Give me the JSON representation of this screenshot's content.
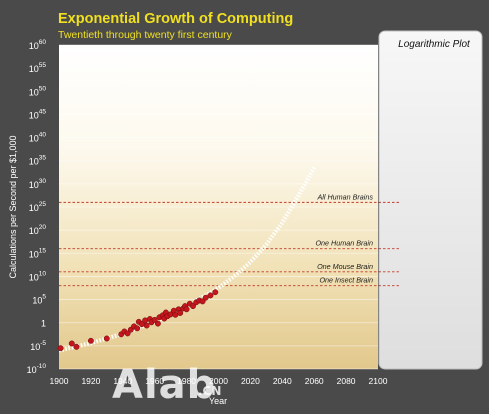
{
  "chart_data": {
    "type": "scatter",
    "title": "Exponential Growth of Computing",
    "subtitle": "Twentieth through twenty first century",
    "xlabel": "Year",
    "ylabel": "Calculations per Second per $1,000",
    "side_panel_title": "Logarithmic Plot",
    "y_scale": "log",
    "xlim": [
      1900,
      2100
    ],
    "ylim_exponent": [
      -10,
      60
    ],
    "x_ticks": [
      "1900",
      "1920",
      "1940",
      "1960",
      "1980",
      "2000",
      "2020",
      "2040",
      "2060",
      "2080",
      "2100"
    ],
    "y_ticks": [
      {
        "base": "10",
        "exp": "-10"
      },
      {
        "base": "10",
        "exp": "-5"
      },
      {
        "base": "1",
        "exp": ""
      },
      {
        "base": "10",
        "exp": "5"
      },
      {
        "base": "10",
        "exp": "10"
      },
      {
        "base": "10",
        "exp": "15"
      },
      {
        "base": "10",
        "exp": "20"
      },
      {
        "base": "10",
        "exp": "25"
      },
      {
        "base": "10",
        "exp": "30"
      },
      {
        "base": "10",
        "exp": "35"
      },
      {
        "base": "10",
        "exp": "40"
      },
      {
        "base": "10",
        "exp": "45"
      },
      {
        "base": "10",
        "exp": "50"
      },
      {
        "base": "10",
        "exp": "55"
      },
      {
        "base": "10",
        "exp": "60"
      }
    ],
    "y_tick_exponents": [
      -10,
      -5,
      0,
      5,
      10,
      15,
      20,
      25,
      30,
      35,
      40,
      45,
      50,
      55,
      60
    ],
    "x_tick_values": [
      1900,
      1920,
      1940,
      1960,
      1980,
      2000,
      2020,
      2040,
      2060,
      2080,
      2100
    ],
    "grid": true,
    "reference_lines": [
      {
        "label": "All Human Brains",
        "log10_value": 26
      },
      {
        "label": "One Human Brain",
        "log10_value": 16
      },
      {
        "label": "One Mouse Brain",
        "log10_value": 11
      },
      {
        "label": "One Insect Brain",
        "log10_value": 8
      }
    ],
    "historical_points": [
      {
        "year": 1901,
        "log10": -5.5
      },
      {
        "year": 1908,
        "log10": -4.5
      },
      {
        "year": 1911,
        "log10": -5.2
      },
      {
        "year": 1920,
        "log10": -3.9
      },
      {
        "year": 1930,
        "log10": -3.4
      },
      {
        "year": 1939,
        "log10": -2.5
      },
      {
        "year": 1941,
        "log10": -1.9
      },
      {
        "year": 1943,
        "log10": -2.3
      },
      {
        "year": 1945,
        "log10": -1.5
      },
      {
        "year": 1947,
        "log10": -0.8
      },
      {
        "year": 1949,
        "log10": -1.2
      },
      {
        "year": 1950,
        "log10": 0.2
      },
      {
        "year": 1952,
        "log10": -0.3
      },
      {
        "year": 1954,
        "log10": 0.5
      },
      {
        "year": 1955,
        "log10": -0.6
      },
      {
        "year": 1957,
        "log10": 0.8
      },
      {
        "year": 1958,
        "log10": 0.1
      },
      {
        "year": 1960,
        "log10": 0.6
      },
      {
        "year": 1962,
        "log10": -0.2
      },
      {
        "year": 1963,
        "log10": 1.2
      },
      {
        "year": 1965,
        "log10": 1.6
      },
      {
        "year": 1966,
        "log10": 0.9
      },
      {
        "year": 1967,
        "log10": 2.2
      },
      {
        "year": 1968,
        "log10": 1.4
      },
      {
        "year": 1970,
        "log10": 1.8
      },
      {
        "year": 1972,
        "log10": 2.6
      },
      {
        "year": 1973,
        "log10": 1.7
      },
      {
        "year": 1975,
        "log10": 2.9
      },
      {
        "year": 1976,
        "log10": 2.1
      },
      {
        "year": 1978,
        "log10": 3.1
      },
      {
        "year": 1979,
        "log10": 3.6
      },
      {
        "year": 1980,
        "log10": 2.9
      },
      {
        "year": 1982,
        "log10": 4.1
      },
      {
        "year": 1984,
        "log10": 3.6
      },
      {
        "year": 1986,
        "log10": 4.4
      },
      {
        "year": 1988,
        "log10": 4.8
      },
      {
        "year": 1990,
        "log10": 4.6
      },
      {
        "year": 1992,
        "log10": 5.4
      },
      {
        "year": 1995,
        "log10": 5.9
      },
      {
        "year": 1998,
        "log10": 6.6
      }
    ],
    "projection": [
      {
        "year": 1900,
        "log10": -6.0
      },
      {
        "year": 1920,
        "log10": -4.4
      },
      {
        "year": 1940,
        "log10": -2.4
      },
      {
        "year": 1960,
        "log10": 0.2
      },
      {
        "year": 1980,
        "log10": 3.6
      },
      {
        "year": 2000,
        "log10": 7.5
      },
      {
        "year": 2010,
        "log10": 10.1
      },
      {
        "year": 2020,
        "log10": 13.1
      },
      {
        "year": 2030,
        "log10": 16.9
      },
      {
        "year": 2040,
        "log10": 21.6
      },
      {
        "year": 2050,
        "log10": 27.4
      },
      {
        "year": 2060,
        "log10": 33.6
      }
    ]
  },
  "watermark": {
    "text": "Alab",
    "suffix": ".CN"
  }
}
